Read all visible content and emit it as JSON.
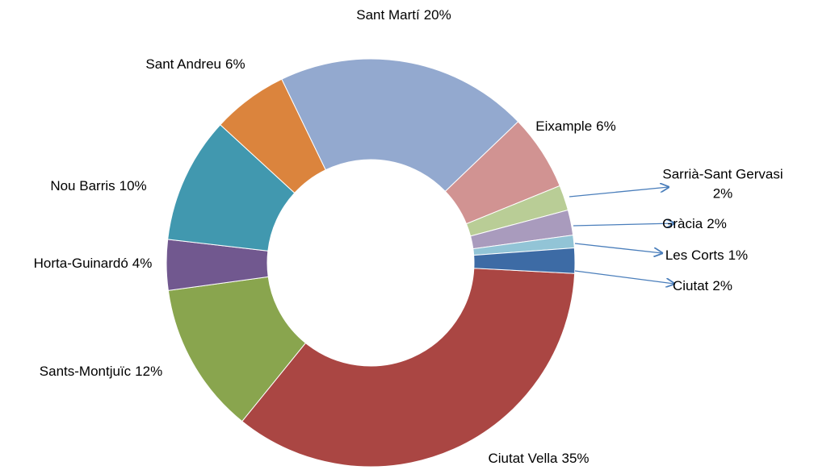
{
  "chart_data": {
    "type": "donut",
    "categories": [
      "Ciutat Vella",
      "Sants-Montjuïc",
      "Horta-Guinardó",
      "Nou Barris",
      "Sant Andreu",
      "Sant Martí",
      "Eixample",
      "Sarrià-Sant Gervasi",
      "Gràcia",
      "Les Corts",
      "Ciutat"
    ],
    "values": [
      35,
      12,
      4,
      10,
      6,
      20,
      6,
      2,
      2,
      1,
      2
    ],
    "value_labels": [
      "35%",
      "12%",
      "4%",
      "10%",
      "6%",
      "20%",
      "6%",
      "2%",
      "2%",
      "1%",
      "2%"
    ],
    "colors": [
      "#aa4643",
      "#89a54e",
      "#71588f",
      "#4198af",
      "#db843d",
      "#93a9cf",
      "#d19392",
      "#b9cd96",
      "#a99bbd",
      "#92c4d6",
      "#3d6ba5"
    ]
  }
}
